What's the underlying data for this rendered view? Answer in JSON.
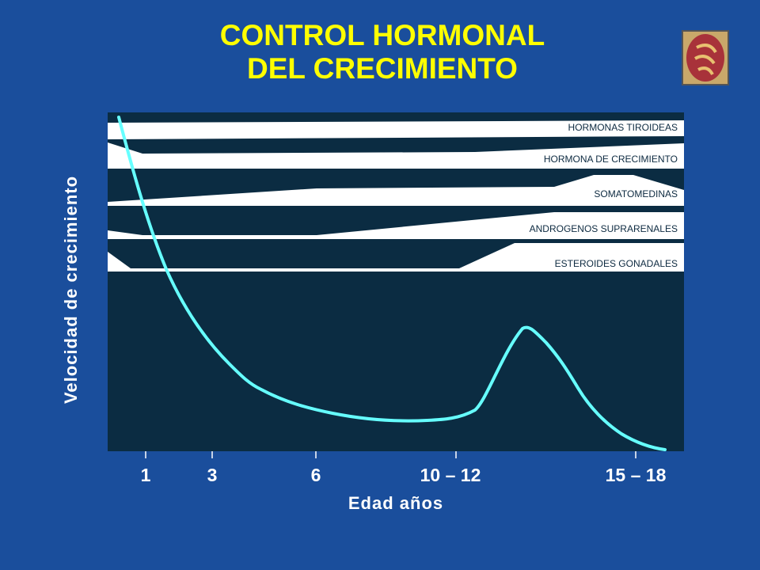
{
  "header": {
    "title_lines": [
      "CONTROL HORMONAL",
      "DEL CRECIMIENTO"
    ]
  },
  "diagram": {
    "bands": [
      "HORMONAS   TIROIDEAS",
      "HORMONA   DE  CRECIMIENTO",
      "SOMATOMEDINAS",
      "ANDROGENOS    SUPRARENALES",
      "ESTEROIDES   GONADALES"
    ],
    "x_ticks": [
      "1",
      "3",
      "6",
      "10 – 12",
      "15 – 18"
    ],
    "x_label": "Edad  años",
    "y_label": "Velocidad  de  crecimiento"
  }
}
